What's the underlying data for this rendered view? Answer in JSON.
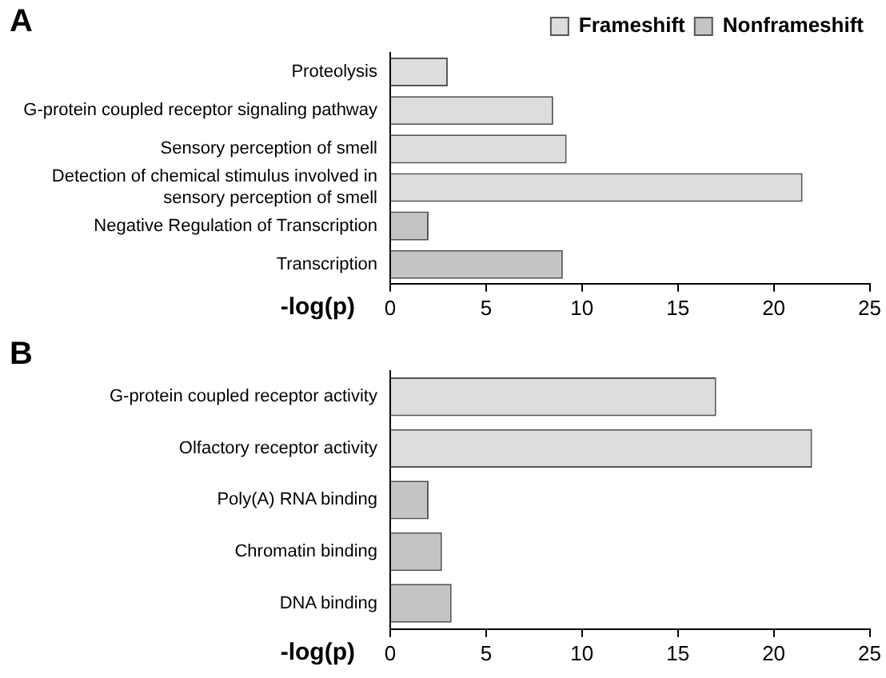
{
  "chart_data": [
    {
      "type": "bar",
      "orientation": "horizontal",
      "title": "A",
      "xlabel": "-log(p)",
      "categories": [
        "Proteolysis",
        "G-protein coupled receptor signaling pathway",
        "Sensory perception of smell",
        "Detection of chemical stimulus involved in sensory perception of smell",
        "Negative Regulation of Transcription",
        "Transcription"
      ],
      "series": [
        {
          "name": "Frameshift",
          "color": "#dddddd",
          "values": [
            3,
            8.5,
            9.2,
            21.5,
            null,
            null
          ]
        },
        {
          "name": "Nonframeshift",
          "color": "#c4c4c4",
          "values": [
            null,
            null,
            null,
            null,
            2,
            9
          ]
        }
      ],
      "xlim": [
        0,
        25
      ],
      "xticks": [
        0,
        5,
        10,
        15,
        20,
        25
      ],
      "grid": false,
      "legend": "top right"
    },
    {
      "type": "bar",
      "orientation": "horizontal",
      "title": "B",
      "xlabel": "-log(p)",
      "categories": [
        "G-protein coupled receptor activity",
        "Olfactory receptor activity",
        "Poly(A) RNA binding",
        "Chromatin binding",
        "DNA binding"
      ],
      "series": [
        {
          "color": "#dddddd",
          "values": [
            17,
            22,
            null,
            null,
            null
          ]
        },
        {
          "color": "#c4c4c4",
          "values": [
            null,
            null,
            2,
            2.7,
            3.2
          ]
        }
      ],
      "xlim": [
        0,
        25
      ],
      "xticks": [
        0,
        5,
        10,
        15,
        20,
        25
      ],
      "grid": false,
      "legend": false
    }
  ]
}
